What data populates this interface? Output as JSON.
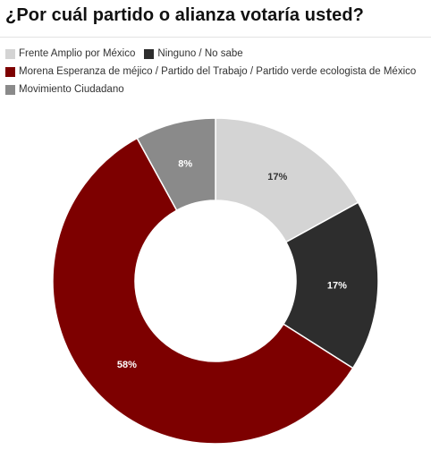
{
  "title": "¿Por cuál partido o alianza votaría usted?",
  "chart_data": {
    "type": "pie",
    "donut": true,
    "legend_placement": "top",
    "slices": [
      {
        "name": "Frente Amplio por México",
        "value": 17,
        "label": "17%",
        "color": "#d4d4d4",
        "label_color": "#333333"
      },
      {
        "name": "Ninguno / No sabe",
        "value": 17,
        "label": "17%",
        "color": "#2d2d2d",
        "label_color": "#ffffff"
      },
      {
        "name": "Morena Esperanza de méjico / Partido del Trabajo / Partido verde ecologista de México",
        "value": 58,
        "label": "58%",
        "color": "#7d0000",
        "label_color": "#ffffff"
      },
      {
        "name": "Movimiento Ciudadano",
        "value": 8,
        "label": "8%",
        "color": "#8a8a8a",
        "label_color": "#ffffff"
      }
    ]
  }
}
